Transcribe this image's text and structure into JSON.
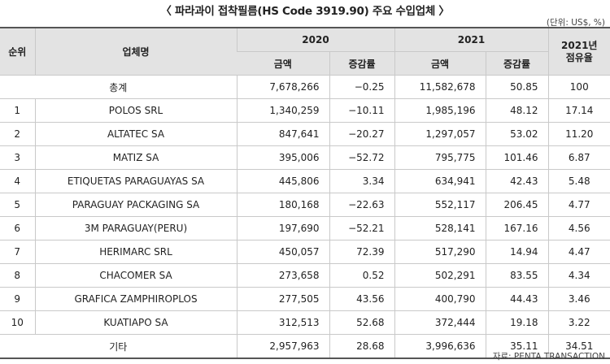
{
  "title": "〈 파라과이 접착필름(HS Code 3919.90) 주요 수입업체 〉",
  "unit": "(단위: US$, %)",
  "source": "자료: PENTA TRANSACTION",
  "header": {
    "rank": "순위",
    "company": "업체명",
    "year_2020": "2020",
    "year_2021": "2021",
    "share_line1": "2021년",
    "share_line2": "점유율",
    "amount": "금액",
    "change": "증감률"
  },
  "total": {
    "label": "총계",
    "a2020": "7,678,266",
    "c2020": "−0.25",
    "a2021": "11,582,678",
    "c2021": "50.85",
    "share": "100"
  },
  "rows": [
    {
      "rank": "1",
      "name": "POLOS SRL",
      "a2020": "1,340,259",
      "c2020": "−10.11",
      "a2021": "1,985,196",
      "c2021": "48.12",
      "share": "17.14"
    },
    {
      "rank": "2",
      "name": "ALTATEC SA",
      "a2020": "847,641",
      "c2020": "−20.27",
      "a2021": "1,297,057",
      "c2021": "53.02",
      "share": "11.20"
    },
    {
      "rank": "3",
      "name": "MATIZ SA",
      "a2020": "395,006",
      "c2020": "−52.72",
      "a2021": "795,775",
      "c2021": "101.46",
      "share": "6.87"
    },
    {
      "rank": "4",
      "name": "ETIQUETAS PARAGUAYAS SA",
      "a2020": "445,806",
      "c2020": "3.34",
      "a2021": "634,941",
      "c2021": "42.43",
      "share": "5.48"
    },
    {
      "rank": "5",
      "name": "PARAGUAY PACKAGING SA",
      "a2020": "180,168",
      "c2020": "−22.63",
      "a2021": "552,117",
      "c2021": "206.45",
      "share": "4.77"
    },
    {
      "rank": "6",
      "name": "3M PARAGUAY(PERU)",
      "a2020": "197,690",
      "c2020": "−52.21",
      "a2021": "528,141",
      "c2021": "167.16",
      "share": "4.56"
    },
    {
      "rank": "7",
      "name": "HERIMARC SRL",
      "a2020": "450,057",
      "c2020": "72.39",
      "a2021": "517,290",
      "c2021": "14.94",
      "share": "4.47"
    },
    {
      "rank": "8",
      "name": "CHACOMER SA",
      "a2020": "273,658",
      "c2020": "0.52",
      "a2021": "502,291",
      "c2021": "83.55",
      "share": "4.34"
    },
    {
      "rank": "9",
      "name": "GRAFICA ZAMPHIROPLOS",
      "a2020": "277,505",
      "c2020": "43.56",
      "a2021": "400,790",
      "c2021": "44.43",
      "share": "3.46"
    },
    {
      "rank": "10",
      "name": "KUATIAPO SA",
      "a2020": "312,513",
      "c2020": "52.68",
      "a2021": "372,444",
      "c2021": "19.18",
      "share": "3.22"
    }
  ],
  "other": {
    "label": "기타",
    "a2020": "2,957,963",
    "c2020": "28.68",
    "a2021": "3,996,636",
    "c2021": "35.11",
    "share": "34.51"
  }
}
